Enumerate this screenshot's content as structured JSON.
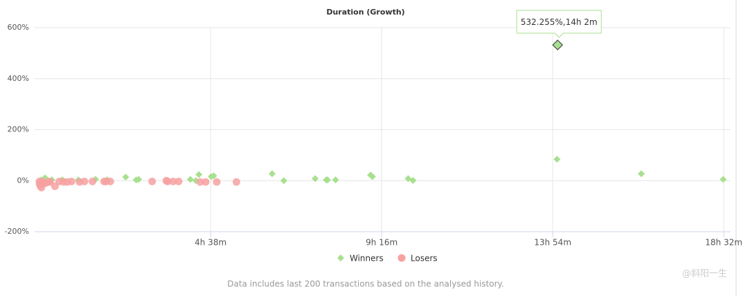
{
  "chart_data": {
    "type": "scatter",
    "title": "Duration (Growth)",
    "xlim": [
      -8,
      1123
    ],
    "xticks": [
      {
        "value": 278,
        "label": "4h 38m"
      },
      {
        "value": 556,
        "label": "9h 16m"
      },
      {
        "value": 834,
        "label": "13h 54m"
      },
      {
        "value": 1112,
        "label": "18h 32m"
      }
    ],
    "ylim": [
      -200,
      600
    ],
    "yticks": [
      {
        "value": -200,
        "label": "-200%"
      },
      {
        "value": 0,
        "label": "0%"
      },
      {
        "value": 200,
        "label": "200%"
      },
      {
        "value": 400,
        "label": "400%"
      },
      {
        "value": 600,
        "label": "600%"
      }
    ],
    "grid": true,
    "series": [
      {
        "name": "Winners",
        "color": "#a8e08f",
        "marker": "diamond",
        "x": [
          842,
          841,
          978,
          1111,
          378,
          397,
          448,
          466,
          468,
          481,
          538,
          541,
          599,
          607,
          259,
          245,
          254,
          279,
          283,
          140,
          157,
          161,
          91,
          63,
          110,
          9,
          3,
          20,
          37
        ],
        "values": [
          532.255,
          84,
          27,
          5,
          27,
          0,
          8,
          3,
          3,
          3,
          22,
          16,
          8,
          1,
          24,
          5,
          0,
          16,
          19,
          14,
          3,
          5,
          5,
          3,
          3,
          11,
          3,
          3,
          3
        ]
      },
      {
        "name": "Losers",
        "color": "#f7a1a1",
        "marker": "circle",
        "x": [
          0,
          1,
          3,
          7,
          11,
          17,
          25,
          32,
          39,
          45,
          52,
          65,
          73,
          86,
          105,
          108,
          115,
          183,
          206,
          208,
          217,
          226,
          261,
          270,
          288,
          320,
          0,
          3,
          15
        ],
        "values": [
          -11,
          -19,
          -27,
          -11,
          -8,
          -5,
          -22,
          -3,
          -5,
          -5,
          -3,
          -5,
          -3,
          -3,
          -3,
          -3,
          -3,
          -3,
          0,
          -3,
          -3,
          -3,
          -5,
          -5,
          -5,
          -5,
          -3,
          -3,
          -3
        ]
      }
    ],
    "tooltip": "532.255%,14h 2m",
    "footnote": "Data includes last 200 transactions based on the analysed history.",
    "watermark": "@斜阳一生"
  }
}
